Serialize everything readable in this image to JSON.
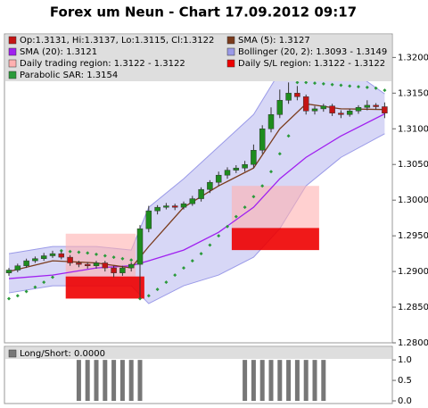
{
  "chart_data": {
    "type": "candlestick",
    "title": "Forex um Neun - Chart 17.09.2012 09:17",
    "ylim": [
      1.28,
      1.3233
    ],
    "yticks": [
      {
        "value": 1.28,
        "label": "1.2800"
      },
      {
        "value": 1.285,
        "label": "1.2850"
      },
      {
        "value": 1.29,
        "label": "1.2900"
      },
      {
        "value": 1.295,
        "label": "1.2950"
      },
      {
        "value": 1.3,
        "label": "1.3000"
      },
      {
        "value": 1.305,
        "label": "1.3050"
      },
      {
        "value": 1.31,
        "label": "1.3100"
      },
      {
        "value": 1.315,
        "label": "1.3150"
      },
      {
        "value": 1.32,
        "label": "1.3200"
      }
    ],
    "ohlc": {
      "name": "Op:1.3131, Hi:1.3137, Lo:1.3115, Cl:1.3122",
      "up_color": "#1e8c1e",
      "down_color": "#c41414",
      "open": [
        1.2898,
        1.2902,
        1.2908,
        1.2915,
        1.2918,
        1.2922,
        1.2925,
        1.292,
        1.2912,
        1.291,
        1.2908,
        1.2912,
        1.2905,
        1.2898,
        1.2905,
        1.291,
        1.296,
        1.2985,
        1.299,
        1.2992,
        1.299,
        1.2995,
        1.3002,
        1.3015,
        1.3025,
        1.3035,
        1.3042,
        1.3045,
        1.305,
        1.307,
        1.31,
        1.312,
        1.314,
        1.315,
        1.3145,
        1.3125,
        1.3128,
        1.3132,
        1.3122,
        1.312,
        1.3125,
        1.313,
        1.3133,
        1.3131
      ],
      "high": [
        1.2905,
        1.2911,
        1.2918,
        1.2921,
        1.2926,
        1.2929,
        1.2928,
        1.2923,
        1.2915,
        1.2913,
        1.2915,
        1.2915,
        1.2908,
        1.2908,
        1.2913,
        1.2965,
        1.2992,
        1.2993,
        1.2996,
        1.2995,
        1.2998,
        1.3006,
        1.3018,
        1.3028,
        1.304,
        1.3046,
        1.3049,
        1.3055,
        1.3078,
        1.3105,
        1.313,
        1.3155,
        1.3165,
        1.316,
        1.3148,
        1.3132,
        1.3135,
        1.3135,
        1.3126,
        1.3128,
        1.3133,
        1.314,
        1.3136,
        1.3137
      ],
      "low": [
        1.2894,
        1.2899,
        1.2905,
        1.2912,
        1.2915,
        1.2919,
        1.2917,
        1.2908,
        1.2906,
        1.2904,
        1.2904,
        1.29,
        1.2892,
        1.2894,
        1.29,
        1.2862,
        1.2955,
        1.298,
        1.2987,
        1.2986,
        1.2987,
        1.2992,
        1.2998,
        1.301,
        1.302,
        1.303,
        1.3038,
        1.304,
        1.3045,
        1.3065,
        1.3095,
        1.3115,
        1.3135,
        1.314,
        1.312,
        1.312,
        1.3124,
        1.3118,
        1.3115,
        1.3117,
        1.3121,
        1.3126,
        1.3127,
        1.3115
      ],
      "close": [
        1.2902,
        1.2908,
        1.2915,
        1.2918,
        1.2922,
        1.2925,
        1.292,
        1.2912,
        1.291,
        1.2908,
        1.2912,
        1.2905,
        1.2898,
        1.2905,
        1.291,
        1.296,
        1.2985,
        1.299,
        1.2992,
        1.299,
        1.2995,
        1.3002,
        1.3015,
        1.3025,
        1.3035,
        1.3042,
        1.3045,
        1.305,
        1.307,
        1.31,
        1.312,
        1.314,
        1.315,
        1.3145,
        1.3125,
        1.3128,
        1.3132,
        1.3122,
        1.312,
        1.3125,
        1.313,
        1.3133,
        1.3131,
        1.3122
      ]
    },
    "sma5": {
      "name": "SMA (5): 1.3127",
      "color": "#7a3b1c",
      "x": [
        0,
        5,
        10,
        14,
        16,
        20,
        24,
        28,
        31,
        34,
        38,
        43
      ],
      "values": [
        1.29,
        1.2915,
        1.2912,
        1.2905,
        1.2935,
        1.299,
        1.302,
        1.3045,
        1.31,
        1.3135,
        1.3128,
        1.3127
      ]
    },
    "sma20": {
      "name": "SMA (20): 1.3121",
      "color": "#a020f0",
      "x": [
        0,
        5,
        10,
        14,
        16,
        20,
        24,
        28,
        31,
        34,
        38,
        43
      ],
      "values": [
        1.289,
        1.2895,
        1.2905,
        1.2908,
        1.2915,
        1.293,
        1.2955,
        1.299,
        1.303,
        1.306,
        1.309,
        1.3121
      ]
    },
    "bollinger": {
      "name": "Bollinger (20, 2): 1.3093 - 1.3149",
      "color": "#9a9ae8",
      "x": [
        0,
        5,
        10,
        14,
        16,
        20,
        24,
        28,
        31,
        34,
        38,
        43
      ],
      "upper": [
        1.2925,
        1.2935,
        1.2935,
        1.293,
        1.299,
        1.303,
        1.3075,
        1.312,
        1.318,
        1.3198,
        1.3192,
        1.3149
      ],
      "lower": [
        1.287,
        1.288,
        1.288,
        1.288,
        1.2855,
        1.288,
        1.2895,
        1.292,
        1.296,
        1.302,
        1.306,
        1.3093
      ]
    },
    "trading_region": {
      "name": "Daily trading region: 1.3122 - 1.3122",
      "color": "#ffb0b0",
      "areas": [
        {
          "x": [
            7,
            14
          ],
          "y": [
            1.2893,
            1.2953
          ]
        },
        {
          "x": [
            26,
            35
          ],
          "y": [
            1.2961,
            1.302
          ]
        }
      ]
    },
    "sl_region": {
      "name": "Daily S/L region: 1.3122 - 1.3122",
      "color": "#ee0000",
      "areas": [
        {
          "x": [
            7,
            15
          ],
          "y": [
            1.2862,
            1.2893
          ]
        },
        {
          "x": [
            26,
            35
          ],
          "y": [
            1.293,
            1.2961
          ]
        }
      ]
    },
    "sar": {
      "name": "Parabolic SAR: 1.3154",
      "color": "#2a9a3a",
      "values": [
        1.2862,
        1.2866,
        1.2872,
        1.2878,
        1.2885,
        1.2892,
        1.2929,
        1.2928,
        1.2927,
        1.2926,
        1.2924,
        1.2922,
        1.292,
        1.2918,
        1.2916,
        1.2862,
        1.2866,
        1.2875,
        1.2885,
        1.2895,
        1.2905,
        1.2915,
        1.2925,
        1.2937,
        1.295,
        1.2963,
        1.2977,
        1.299,
        1.3005,
        1.302,
        1.304,
        1.3065,
        1.309,
        1.3165,
        1.3165,
        1.3164,
        1.3163,
        1.3162,
        1.3161,
        1.316,
        1.3159,
        1.3158,
        1.3157,
        1.3154
      ]
    },
    "long_short": {
      "name": "Long/Short: 0.0000",
      "color": "#777777",
      "ylim": [
        0,
        1.33
      ],
      "yticks": [
        {
          "value": 0,
          "label": "0.0"
        },
        {
          "value": 0.5,
          "label": "0.5"
        },
        {
          "value": 1,
          "label": "1.0"
        }
      ],
      "values": [
        0,
        0,
        0,
        0,
        0,
        0,
        0,
        0,
        1,
        1,
        1,
        1,
        1,
        1,
        1,
        1,
        0,
        0,
        0,
        0,
        0,
        0,
        0,
        0,
        0,
        0,
        0,
        1,
        1,
        1,
        1,
        1,
        1,
        1,
        1,
        1,
        1,
        0,
        0,
        0,
        0,
        0,
        0,
        0
      ]
    }
  }
}
